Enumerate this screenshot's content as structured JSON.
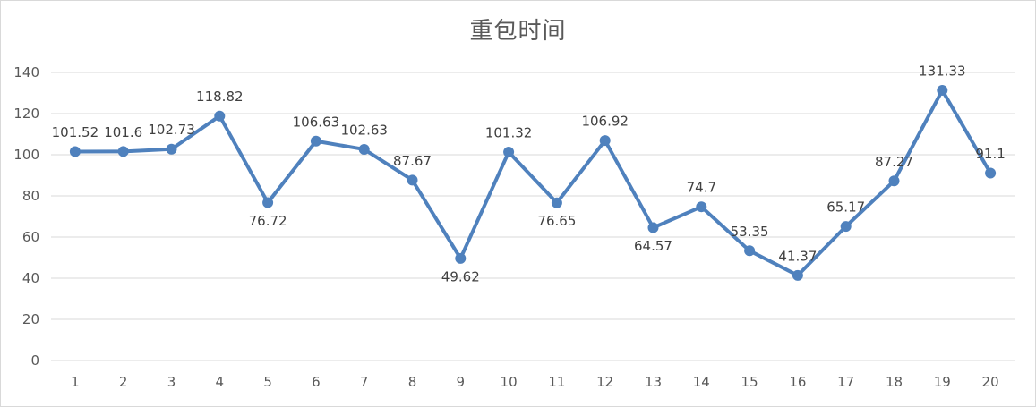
{
  "chart_data": {
    "type": "line",
    "title": "重包时间",
    "xlabel": "",
    "ylabel": "",
    "categories": [
      "1",
      "2",
      "3",
      "4",
      "5",
      "6",
      "7",
      "8",
      "9",
      "10",
      "11",
      "12",
      "13",
      "14",
      "15",
      "16",
      "17",
      "18",
      "19",
      "20"
    ],
    "series": [
      {
        "values": [
          101.52,
          101.6,
          102.73,
          118.82,
          76.72,
          106.63,
          102.63,
          87.67,
          49.62,
          101.32,
          76.65,
          106.92,
          64.57,
          74.7,
          53.35,
          41.37,
          65.17,
          87.27,
          131.33,
          91.1
        ],
        "labels": [
          "101.52",
          "101.6",
          "102.73",
          "118.82",
          "76.72",
          "106.63",
          "102.63",
          "87.67",
          "49.62",
          "101.32",
          "76.65",
          "106.92",
          "64.57",
          "74.7",
          "53.35",
          "41.37",
          "65.17",
          "87.27",
          "131.33",
          "91.1"
        ],
        "label_positions": [
          "above",
          "above",
          "above",
          "above",
          "below",
          "above",
          "above",
          "above",
          "below",
          "above",
          "below",
          "above",
          "below",
          "above",
          "above",
          "above",
          "above",
          "above",
          "above",
          "above"
        ],
        "color": "#4f81bd"
      }
    ],
    "ylim": [
      0,
      140
    ],
    "yticks": [
      "0",
      "20",
      "40",
      "60",
      "80",
      "100",
      "120",
      "140"
    ],
    "grid": true,
    "legend": "none",
    "colors": {
      "line": "#4f81bd",
      "grid": "#d9d9d9",
      "text": "#595959"
    }
  }
}
